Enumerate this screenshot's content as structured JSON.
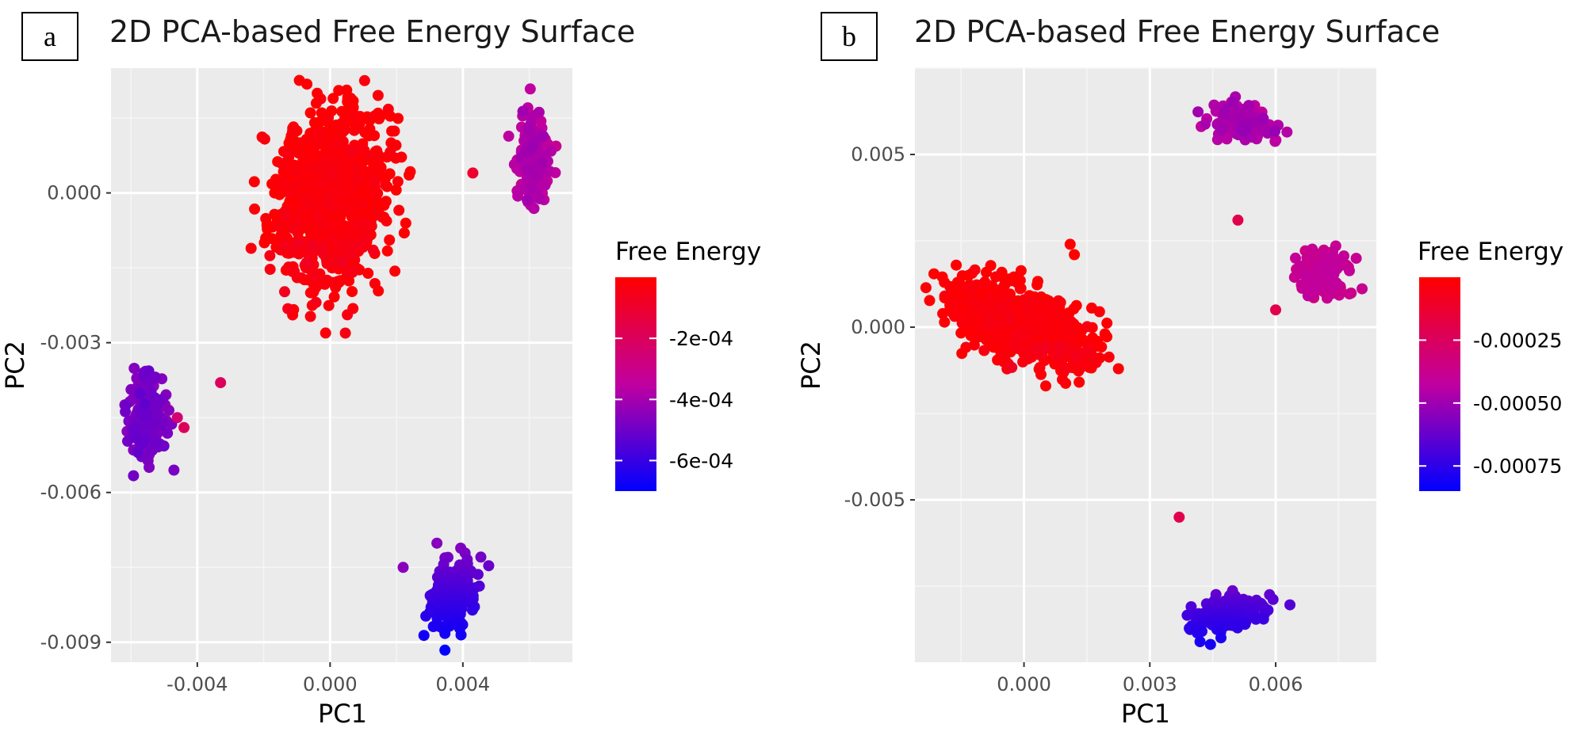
{
  "chart_data": [
    {
      "panel": "a",
      "type": "scatter",
      "title": "2D PCA-based Free Energy Surface",
      "xlabel": "PC1",
      "ylabel": "PC2",
      "xlim": [
        -0.0066,
        0.0073
      ],
      "ylim": [
        -0.0094,
        0.0025
      ],
      "xticks": [
        -0.004,
        0.0,
        0.004
      ],
      "xtick_labels": [
        "-0.004",
        "0.000",
        "0.004"
      ],
      "yticks": [
        0.0,
        -0.003,
        -0.006,
        -0.009
      ],
      "ytick_labels": [
        "0.000",
        "-0.003",
        "-0.006",
        "-0.009"
      ],
      "legend": {
        "title": "Free Energy",
        "min": -0.0007,
        "max": 0.0,
        "ticks": [
          -0.0002,
          -0.0004,
          -0.0006
        ],
        "tick_labels": [
          "-2e-04",
          "-4e-04",
          "-6e-04"
        ]
      },
      "clusters": [
        {
          "name": "central",
          "cx": 0.0,
          "cy": -0.0001,
          "sx": 0.00085,
          "sy": 0.0009,
          "rho": 0.15,
          "n": 900,
          "energy": 0.0,
          "energy_spread": 3e-05
        },
        {
          "name": "top-right",
          "cx": 0.0061,
          "cy": 0.0006,
          "sx": 0.00025,
          "sy": 0.0005,
          "rho": 0.0,
          "n": 160,
          "energy": -0.00036,
          "energy_spread": 4e-05
        },
        {
          "name": "left",
          "cx": -0.0055,
          "cy": -0.0045,
          "sx": 0.00028,
          "sy": 0.00045,
          "rho": 0.0,
          "n": 160,
          "energy": -0.00047,
          "energy_spread": 4e-05
        },
        {
          "name": "bottom-right",
          "cx": 0.0037,
          "cy": -0.0081,
          "sx": 0.00035,
          "sy": 0.00035,
          "rho": 0.35,
          "n": 200,
          "energy": -0.00058,
          "energy_spread": 8e-05
        }
      ],
      "outliers": [
        {
          "x": 0.0043,
          "y": 0.0004,
          "energy": -0.0001
        },
        {
          "x": -0.0033,
          "y": -0.0038,
          "energy": -0.0002
        },
        {
          "x": -0.0044,
          "y": -0.0047,
          "energy": -0.0002
        },
        {
          "x": -0.0046,
          "y": -0.0045,
          "energy": -0.00025
        },
        {
          "x": 0.0022,
          "y": -0.0075,
          "energy": -0.00045
        }
      ]
    },
    {
      "panel": "b",
      "type": "scatter",
      "title": "2D PCA-based Free Energy Surface",
      "xlabel": "PC1",
      "ylabel": "PC2",
      "xlim": [
        -0.0026,
        0.0084
      ],
      "ylim": [
        -0.0097,
        0.0075
      ],
      "xticks": [
        0.0,
        0.003,
        0.006
      ],
      "xtick_labels": [
        "0.000",
        "0.003",
        "0.006"
      ],
      "yticks": [
        0.005,
        0.0,
        -0.005
      ],
      "ytick_labels": [
        "0.005",
        "0.000",
        "-0.005"
      ],
      "legend": {
        "title": "Free Energy",
        "min": -0.00085,
        "max": 0.0,
        "ticks": [
          -0.00025,
          -0.0005,
          -0.00075
        ],
        "tick_labels": [
          "-0.00025",
          "-0.00050",
          "-0.00075"
        ]
      },
      "clusters": [
        {
          "name": "central",
          "cx": -0.0001,
          "cy": 0.0001,
          "sx": 0.0008,
          "sy": 0.0006,
          "rho": -0.55,
          "n": 900,
          "energy": 0.0,
          "energy_spread": 3e-05
        },
        {
          "name": "top",
          "cx": 0.0052,
          "cy": 0.0059,
          "sx": 0.00038,
          "sy": 0.00025,
          "rho": -0.2,
          "n": 170,
          "energy": -0.00045,
          "energy_spread": 5e-05
        },
        {
          "name": "right",
          "cx": 0.0072,
          "cy": 0.0016,
          "sx": 0.00028,
          "sy": 0.00035,
          "rho": 0.0,
          "n": 150,
          "energy": -0.00038,
          "energy_spread": 4e-05
        },
        {
          "name": "bottom",
          "cx": 0.0049,
          "cy": -0.0083,
          "sx": 0.0004,
          "sy": 0.00025,
          "rho": 0.4,
          "n": 200,
          "energy": -0.0007,
          "energy_spread": 6e-05
        }
      ],
      "outliers": [
        {
          "x": 0.0051,
          "y": 0.0031,
          "energy": -0.0002
        },
        {
          "x": 0.006,
          "y": 0.0005,
          "energy": -0.0002
        },
        {
          "x": 0.0037,
          "y": -0.0055,
          "energy": -0.0002
        },
        {
          "x": 0.0011,
          "y": 0.0024,
          "energy": 0.0
        },
        {
          "x": 0.0012,
          "y": 0.0021,
          "energy": 0.0
        }
      ]
    }
  ]
}
